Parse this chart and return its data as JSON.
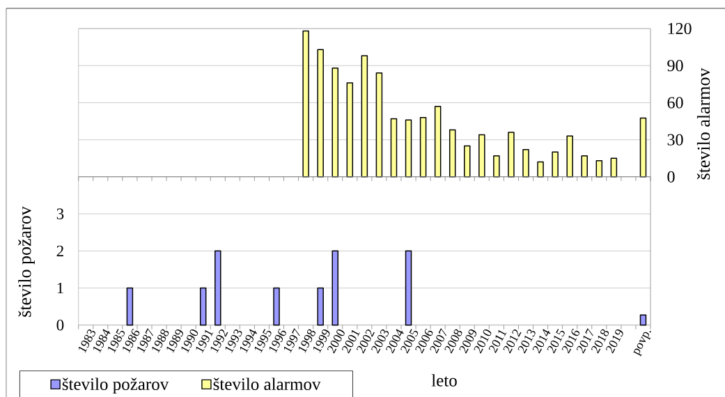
{
  "chart_data": {
    "type": "bar",
    "xlabel": "leto",
    "ylabel": "število požarov",
    "y2label": "število alarmov",
    "categories": [
      "1983",
      "1984",
      "1985",
      "1986",
      "1987",
      "1988",
      "1989",
      "1990",
      "1991",
      "1992",
      "1993",
      "1994",
      "1995",
      "1996",
      "1997",
      "1998",
      "1999",
      "2000",
      "2001",
      "2002",
      "2003",
      "2004",
      "2005",
      "2006",
      "2007",
      "2008",
      "2009",
      "2010",
      "2011",
      "2012",
      "2013",
      "2014",
      "2015",
      "2016",
      "2017",
      "2018",
      "2019",
      null,
      "povp."
    ],
    "series": [
      {
        "name": "število požarov",
        "color": "#9999ff",
        "values": [
          0,
          0,
          0,
          1,
          0,
          0,
          0,
          0,
          1,
          2,
          0,
          0,
          0,
          1,
          0,
          0,
          1,
          2,
          0,
          0,
          0,
          0,
          2,
          0,
          0,
          0,
          0,
          0,
          0,
          0,
          0,
          0,
          0,
          0,
          0,
          0,
          0,
          null,
          0.27
        ]
      },
      {
        "name": "število alarmov",
        "color": "#ffff99",
        "axis": "y2",
        "values": [
          null,
          null,
          null,
          null,
          null,
          null,
          null,
          null,
          null,
          null,
          null,
          null,
          null,
          null,
          null,
          118,
          103,
          88,
          76,
          98,
          84,
          47,
          46,
          48,
          57,
          38,
          25,
          34,
          17,
          36,
          22,
          12,
          20,
          33,
          17,
          13,
          15,
          null,
          47.6
        ]
      }
    ],
    "ylim": [
      0,
      8
    ],
    "yticks": [
      0,
      1,
      2,
      3
    ],
    "y2lim": [
      -120,
      120
    ],
    "y2ticks": [
      0,
      30,
      60,
      90,
      120
    ],
    "grid": "y",
    "legend": "bottom left"
  }
}
